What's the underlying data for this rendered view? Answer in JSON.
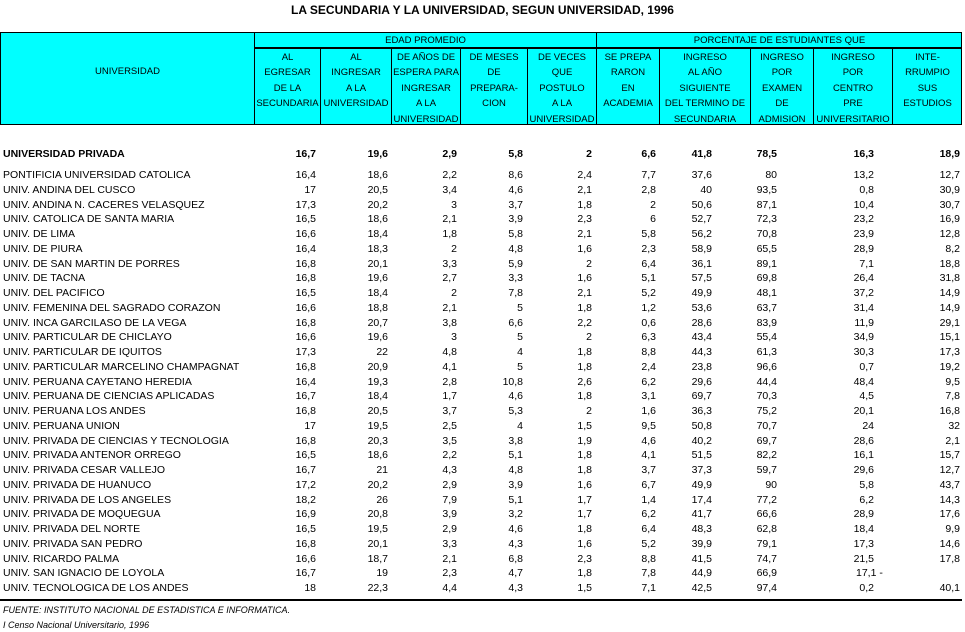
{
  "title": "LA SECUNDARIA Y LA UNIVERSIDAD, SEGUN UNIVERSIDAD, 1996",
  "header": {
    "universidad": "UNIVERSIDAD",
    "group1": "EDAD PROMEDIO",
    "group2": "PORCENTAJE DE ESTUDIANTES QUE",
    "columns": [
      [
        "AL",
        "EGRESAR",
        "DE LA",
        "SECUNDARIA"
      ],
      [
        "AL",
        "INGRESAR",
        "A LA",
        "UNIVERSIDAD"
      ],
      [
        "DE AÑOS DE",
        "ESPERA PARA",
        "INGRESAR",
        "A LA",
        "UNIVERSIDAD"
      ],
      [
        "DE MESES",
        "DE",
        "PREPARA-",
        "CION"
      ],
      [
        "DE VECES",
        "QUE",
        "POSTULO",
        "A LA",
        "UNIVERSIDAD"
      ],
      [
        "SE PREPA",
        "RARON",
        "EN",
        "ACADEMIA"
      ],
      [
        "INGRESO",
        "AL AÑO",
        "SIGUIENTE",
        "DEL TERMINO DE",
        "SECUNDARIA"
      ],
      [
        "INGRESO",
        "POR",
        "EXAMEN",
        "DE",
        "ADMISION"
      ],
      [
        "INGRESO",
        "POR",
        "CENTRO",
        "PRE",
        "UNIVERSITARIO"
      ],
      [
        "INTE-",
        "RRUMPIO",
        "SUS",
        "ESTUDIOS"
      ]
    ]
  },
  "total": {
    "name": "UNIVERSIDAD PRIVADA",
    "values": [
      "16,7",
      "19,6",
      "2,9",
      "5,8",
      "2",
      "6,6",
      "41,8",
      "78,5",
      "16,3",
      "18,9"
    ]
  },
  "rows": [
    {
      "name": "PONTIFICIA UNIVERSIDAD CATOLICA",
      "values": [
        "16,4",
        "18,6",
        "2,2",
        "8,6",
        "2,4",
        "7,7",
        "37,6",
        "80",
        "13,2",
        "12,7"
      ]
    },
    {
      "name": "UNIV. ANDINA DEL CUSCO",
      "values": [
        "17",
        "20,5",
        "3,4",
        "4,6",
        "2,1",
        "2,8",
        "40",
        "93,5",
        "0,8",
        "30,9"
      ]
    },
    {
      "name": "UNIV. ANDINA N. CACERES VELASQUEZ",
      "values": [
        "17,3",
        "20,2",
        "3",
        "3,7",
        "1,8",
        "2",
        "50,6",
        "87,1",
        "10,4",
        "30,7"
      ]
    },
    {
      "name": "UNIV. CATOLICA DE SANTA MARIA",
      "values": [
        "16,5",
        "18,6",
        "2,1",
        "3,9",
        "2,3",
        "6",
        "52,7",
        "72,3",
        "23,2",
        "16,9"
      ]
    },
    {
      "name": "UNIV. DE LIMA",
      "values": [
        "16,6",
        "18,4",
        "1,8",
        "5,8",
        "2,1",
        "5,8",
        "56,2",
        "70,8",
        "23,9",
        "12,8"
      ]
    },
    {
      "name": "UNIV. DE PIURA",
      "values": [
        "16,4",
        "18,3",
        "2",
        "4,8",
        "1,6",
        "2,3",
        "58,9",
        "65,5",
        "28,9",
        "8,2"
      ]
    },
    {
      "name": "UNIV. DE SAN MARTIN DE PORRES",
      "values": [
        "16,8",
        "20,1",
        "3,3",
        "5,9",
        "2",
        "6,4",
        "36,1",
        "89,1",
        "7,1",
        "18,8"
      ]
    },
    {
      "name": "UNIV. DE TACNA",
      "values": [
        "16,8",
        "19,6",
        "2,7",
        "3,3",
        "1,6",
        "5,1",
        "57,5",
        "69,8",
        "26,4",
        "31,8"
      ]
    },
    {
      "name": "UNIV. DEL PACIFICO",
      "values": [
        "16,5",
        "18,4",
        "2",
        "7,8",
        "2,1",
        "5,2",
        "49,9",
        "48,1",
        "37,2",
        "14,9"
      ]
    },
    {
      "name": "UNIV. FEMENINA DEL SAGRADO CORAZON",
      "values": [
        "16,6",
        "18,8",
        "2,1",
        "5",
        "1,8",
        "1,2",
        "53,6",
        "63,7",
        "31,4",
        "14,9"
      ]
    },
    {
      "name": "UNIV. INCA GARCILASO DE LA VEGA",
      "values": [
        "16,8",
        "20,7",
        "3,8",
        "6,6",
        "2,2",
        "0,6",
        "28,6",
        "83,9",
        "11,9",
        "29,1"
      ]
    },
    {
      "name": "UNIV. PARTICULAR DE CHICLAYO",
      "values": [
        "16,6",
        "19,6",
        "3",
        "5",
        "2",
        "6,3",
        "43,4",
        "55,4",
        "34,9",
        "15,1"
      ]
    },
    {
      "name": "UNIV. PARTICULAR DE IQUITOS",
      "values": [
        "17,3",
        "22",
        "4,8",
        "4",
        "1,8",
        "8,8",
        "44,3",
        "61,3",
        "30,3",
        "17,3"
      ]
    },
    {
      "name": "UNIV. PARTICULAR MARCELINO CHAMPAGNAT",
      "values": [
        "16,8",
        "20,9",
        "4,1",
        "5",
        "1,8",
        "2,4",
        "23,8",
        "96,6",
        "0,7",
        "19,2"
      ]
    },
    {
      "name": "UNIV. PERUANA CAYETANO HEREDIA",
      "values": [
        "16,4",
        "19,3",
        "2,8",
        "10,8",
        "2,6",
        "6,2",
        "29,6",
        "44,4",
        "48,4",
        "9,5"
      ]
    },
    {
      "name": "UNIV. PERUANA DE CIENCIAS APLICADAS",
      "values": [
        "16,7",
        "18,4",
        "1,7",
        "4,6",
        "1,8",
        "3,1",
        "69,7",
        "70,3",
        "4,5",
        "7,8"
      ]
    },
    {
      "name": "UNIV. PERUANA LOS ANDES",
      "values": [
        "16,8",
        "20,5",
        "3,7",
        "5,3",
        "2",
        "1,6",
        "36,3",
        "75,2",
        "20,1",
        "16,8"
      ]
    },
    {
      "name": "UNIV. PERUANA UNION",
      "values": [
        "17",
        "19,5",
        "2,5",
        "4",
        "1,5",
        "9,5",
        "50,8",
        "70,7",
        "24",
        "32"
      ]
    },
    {
      "name": "UNIV. PRIVADA DE CIENCIAS Y TECNOLOGIA",
      "values": [
        "16,8",
        "20,3",
        "3,5",
        "3,8",
        "1,9",
        "4,6",
        "40,2",
        "69,7",
        "28,6",
        "2,1"
      ]
    },
    {
      "name": "UNIV. PRIVADA ANTENOR ORREGO",
      "values": [
        "16,5",
        "18,6",
        "2,2",
        "5,1",
        "1,8",
        "4,1",
        "51,5",
        "82,2",
        "16,1",
        "15,7"
      ]
    },
    {
      "name": "UNIV. PRIVADA CESAR VALLEJO",
      "values": [
        "16,7",
        "21",
        "4,3",
        "4,8",
        "1,8",
        "3,7",
        "37,3",
        "59,7",
        "29,6",
        "12,7"
      ]
    },
    {
      "name": "UNIV. PRIVADA DE HUANUCO",
      "values": [
        "17,2",
        "20,2",
        "2,9",
        "3,9",
        "1,6",
        "6,7",
        "49,9",
        "90",
        "5,8",
        "43,7"
      ]
    },
    {
      "name": "UNIV. PRIVADA DE LOS ANGELES",
      "values": [
        "18,2",
        "26",
        "7,9",
        "5,1",
        "1,7",
        "1,4",
        "17,4",
        "77,2",
        "6,2",
        "14,3"
      ]
    },
    {
      "name": "UNIV. PRIVADA DE MOQUEGUA",
      "values": [
        "16,9",
        "20,8",
        "3,9",
        "3,2",
        "1,7",
        "6,2",
        "41,7",
        "66,6",
        "28,9",
        "17,6"
      ]
    },
    {
      "name": "UNIV. PRIVADA DEL NORTE",
      "values": [
        "16,5",
        "19,5",
        "2,9",
        "4,6",
        "1,8",
        "6,4",
        "48,3",
        "62,8",
        "18,4",
        "9,9"
      ]
    },
    {
      "name": "UNIV. PRIVADA SAN PEDRO",
      "values": [
        "16,8",
        "20,1",
        "3,3",
        "4,3",
        "1,6",
        "5,2",
        "39,9",
        "79,1",
        "17,3",
        "14,6"
      ]
    },
    {
      "name": "UNIV. RICARDO PALMA",
      "values": [
        "16,6",
        "18,7",
        "2,1",
        "6,8",
        "2,3",
        "8,8",
        "41,5",
        "74,7",
        "21,5",
        "17,8"
      ]
    },
    {
      "name": "UNIV. SAN IGNACIO DE LOYOLA",
      "values": [
        "16,7",
        "19",
        "2,3",
        "4,7",
        "1,8",
        "7,8",
        "44,9",
        "66,9",
        "17,1 -",
        ""
      ]
    },
    {
      "name": "UNIV. TECNOLOGICA DE LOS ANDES",
      "values": [
        "18",
        "22,3",
        "4,4",
        "4,3",
        "1,5",
        "7,1",
        "42,5",
        "97,4",
        "0,2",
        "40,1"
      ]
    }
  ],
  "footer": {
    "source": "FUENTE: INSTITUTO NACIONAL DE ESTADISTICA E INFORMATICA.",
    "note": "I Censo Nacional Universitario, 1996"
  },
  "colors": {
    "header_bg": "#00ffff"
  }
}
